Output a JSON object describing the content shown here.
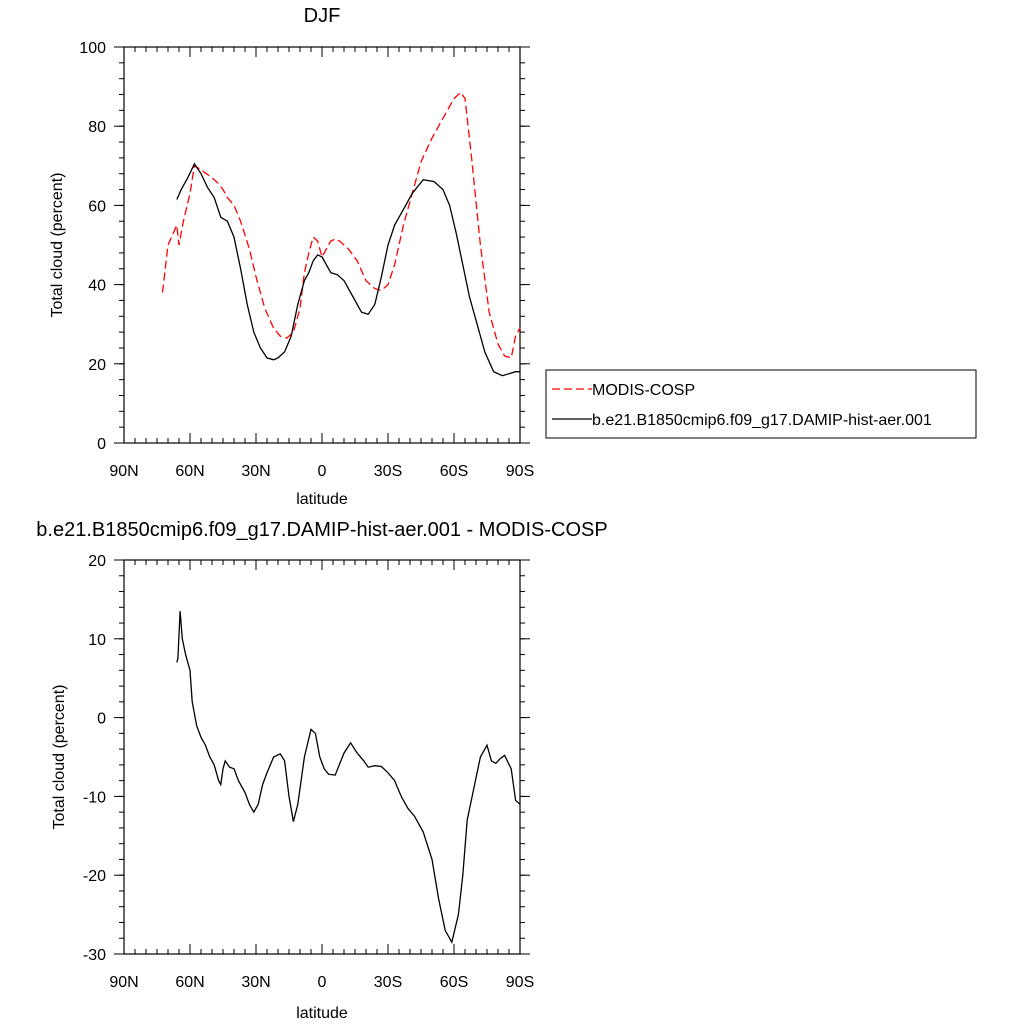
{
  "chart_data": [
    {
      "type": "line",
      "title": "DJF",
      "xlabel": "latitude",
      "ylabel": "Total cloud (percent)",
      "xlim": [
        90,
        -90
      ],
      "ylim": [
        0,
        100
      ],
      "x_ticks": [
        90,
        60,
        30,
        0,
        -30,
        -60,
        -90
      ],
      "x_tick_labels": [
        "90N",
        "60N",
        "30N",
        "0",
        "30S",
        "60S",
        "90S"
      ],
      "y_ticks": [
        0,
        20,
        40,
        60,
        80,
        100
      ],
      "y_tick_labels": [
        "0",
        "20",
        "40",
        "60",
        "80",
        "100"
      ],
      "legend_position": "right",
      "series": [
        {
          "name": "MODIS-COSP",
          "color": "#ff0000",
          "dashed": true,
          "x": [
            72.5,
            70,
            66,
            65,
            63,
            60,
            58,
            55,
            50,
            47,
            45,
            43,
            40,
            37,
            33,
            30,
            26,
            22,
            19,
            16,
            13,
            10,
            8,
            6,
            4,
            2,
            0,
            -2,
            -4,
            -6,
            -8,
            -12,
            -16,
            -20,
            -24,
            -27,
            -30,
            -33,
            -37,
            -41,
            -45,
            -50,
            -55,
            -60,
            -63,
            -65,
            -68,
            -72,
            -76,
            -80,
            -83,
            -86,
            -88,
            -90
          ],
          "y": [
            38,
            50,
            55,
            50,
            56,
            63,
            70,
            69,
            67,
            65.5,
            64,
            62,
            60,
            56,
            49,
            42,
            34,
            29,
            27,
            26.5,
            28,
            34,
            43,
            48,
            52,
            51,
            47,
            49,
            51,
            51.5,
            51,
            49,
            46,
            41,
            39,
            38.5,
            40,
            45,
            55,
            63,
            71,
            77,
            82,
            87,
            88.5,
            87,
            72,
            50,
            33,
            25,
            22,
            21.5,
            27,
            29
          ]
        },
        {
          "name": "b.e21.B1850cmip6.f09_g17.DAMIP-hist-aer.001",
          "color": "#000000",
          "dashed": false,
          "x": [
            66,
            64,
            61,
            58,
            55,
            52,
            49,
            46,
            43,
            40,
            37,
            34,
            31,
            28,
            25,
            22,
            20,
            17,
            14,
            11,
            8,
            6,
            4,
            2,
            0,
            -2,
            -4,
            -7,
            -10,
            -14,
            -18,
            -21,
            -24,
            -27,
            -30,
            -33,
            -37,
            -41,
            -46,
            -51,
            -55,
            -58,
            -61,
            -64,
            -67,
            -70,
            -74,
            -78,
            -82,
            -85,
            -88,
            -90
          ],
          "y": [
            61.5,
            64,
            67,
            70.5,
            68,
            64.5,
            62,
            57,
            56,
            52,
            44,
            35,
            28,
            24,
            21.5,
            21,
            21.5,
            23,
            27,
            35,
            41,
            43,
            46,
            47.5,
            47,
            45,
            43,
            42.5,
            41,
            37,
            33,
            32.5,
            35,
            42,
            50,
            55,
            59,
            63,
            66.5,
            66,
            64,
            60,
            53,
            45,
            37,
            31,
            23,
            18,
            17,
            17.5,
            18,
            18
          ]
        }
      ]
    },
    {
      "type": "line",
      "title": "b.e21.B1850cmip6.f09_g17.DAMIP-hist-aer.001 - MODIS-COSP",
      "xlabel": "latitude",
      "ylabel": "Total cloud (percent)",
      "xlim": [
        90,
        -90
      ],
      "ylim": [
        -30,
        20
      ],
      "x_ticks": [
        90,
        60,
        30,
        0,
        -30,
        -60,
        -90
      ],
      "x_tick_labels": [
        "90N",
        "60N",
        "30N",
        "0",
        "30S",
        "60S",
        "90S"
      ],
      "y_ticks": [
        -30,
        -20,
        -10,
        0,
        10,
        20
      ],
      "y_tick_labels": [
        "-30",
        "-20",
        "-10",
        "0",
        "10",
        "20"
      ],
      "series": [
        {
          "color": "#000000",
          "dashed": false,
          "x": [
            66,
            65.5,
            64.5,
            63.5,
            62,
            60,
            59,
            57,
            55,
            53,
            51,
            49,
            47,
            46,
            45,
            44,
            42,
            40,
            38,
            35,
            33,
            31,
            29,
            27,
            25,
            22,
            19,
            17,
            15,
            13,
            11,
            8,
            5,
            3,
            1,
            -1,
            -3,
            -6,
            -10,
            -13,
            -16,
            -19,
            -21,
            -24,
            -27,
            -30,
            -33,
            -36,
            -39,
            -42,
            -46,
            -50,
            -53,
            -56,
            -59,
            -62,
            -64,
            -66,
            -69,
            -72,
            -75,
            -77,
            -79,
            -81,
            -83,
            -86,
            -88,
            -90
          ],
          "y": [
            7,
            7.5,
            13.5,
            10,
            8,
            6,
            2,
            -1,
            -2.5,
            -3.5,
            -5,
            -6,
            -8,
            -8.5,
            -6.5,
            -5.5,
            -6.3,
            -6.5,
            -8,
            -9.5,
            -11,
            -12,
            -11,
            -8.5,
            -7,
            -5,
            -4.6,
            -5.5,
            -10,
            -13.2,
            -11,
            -5,
            -1.5,
            -2,
            -5,
            -6.5,
            -7.2,
            -7.3,
            -4.5,
            -3.2,
            -4.5,
            -5.5,
            -6.3,
            -6.1,
            -6.2,
            -7,
            -8,
            -10,
            -11.5,
            -12.5,
            -14.5,
            -18,
            -23,
            -27,
            -28.5,
            -25,
            -20,
            -13,
            -9,
            -5,
            -3.5,
            -5.5,
            -5.8,
            -5.2,
            -4.8,
            -6.5,
            -10.5,
            -11
          ]
        }
      ]
    }
  ]
}
